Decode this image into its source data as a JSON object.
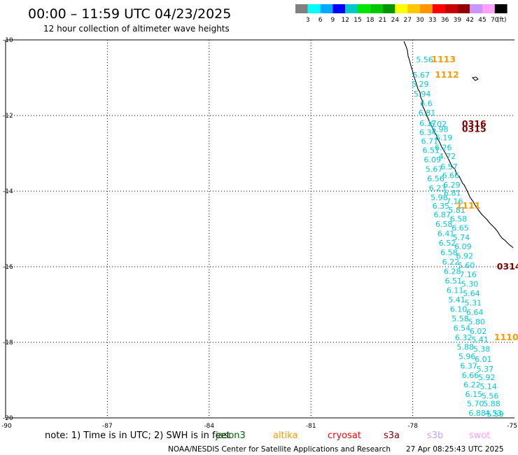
{
  "chart_data": {
    "type": "scatter",
    "title": "00:00 – 11:59 UTC 04/23/2025",
    "subtitle": "12 hour collection of altimeter wave heights",
    "xlim": [
      -90,
      -75
    ],
    "ylim": [
      -20,
      -10
    ],
    "xticks": [
      "-90",
      "-87",
      "-84",
      "-81",
      "-78",
      "-75"
    ],
    "yticks": [
      "-10",
      "-12",
      "-14",
      "-16",
      "-18",
      "-20"
    ],
    "grid": true,
    "colorbar": {
      "unit": "(ft)",
      "labels": [
        "3",
        "6",
        "9",
        "12",
        "15",
        "18",
        "21",
        "24",
        "27",
        "30",
        "33",
        "36",
        "39",
        "42",
        "45",
        "70"
      ],
      "colors": [
        "#808080",
        "#00ffff",
        "#00aaff",
        "#0000ff",
        "#00c8c8",
        "#00e600",
        "#00c800",
        "#009600",
        "#ffff00",
        "#ffc800",
        "#ff9600",
        "#ff0000",
        "#c80000",
        "#960000",
        "#c896ff",
        "#ffa0ff",
        "#000000"
      ]
    },
    "swh_points": [
      {
        "lon": -77.65,
        "lat": -10.52,
        "value": "5.56"
      },
      {
        "lon": -77.75,
        "lat": -10.93,
        "value": "5.67"
      },
      {
        "lon": -77.78,
        "lat": -11.17,
        "value": "5.29"
      },
      {
        "lon": -77.72,
        "lat": -11.43,
        "value": "5.94"
      },
      {
        "lon": -77.6,
        "lat": -11.68,
        "value": "6.6"
      },
      {
        "lon": -77.58,
        "lat": -11.93,
        "value": "6.81"
      },
      {
        "lon": -77.55,
        "lat": -12.2,
        "value": "6.17"
      },
      {
        "lon": -77.25,
        "lat": -12.22,
        "value": "6.02"
      },
      {
        "lon": -77.2,
        "lat": -12.36,
        "value": "5.98"
      },
      {
        "lon": -77.55,
        "lat": -12.44,
        "value": "6.34"
      },
      {
        "lon": -77.08,
        "lat": -12.58,
        "value": "6.19"
      },
      {
        "lon": -77.5,
        "lat": -12.68,
        "value": "6.71"
      },
      {
        "lon": -77.1,
        "lat": -12.84,
        "value": "6.26"
      },
      {
        "lon": -77.46,
        "lat": -12.92,
        "value": "6.51"
      },
      {
        "lon": -76.98,
        "lat": -13.07,
        "value": "4.72"
      },
      {
        "lon": -77.42,
        "lat": -13.17,
        "value": "6.09"
      },
      {
        "lon": -76.93,
        "lat": -13.35,
        "value": "6.57"
      },
      {
        "lon": -77.37,
        "lat": -13.42,
        "value": "5.67"
      },
      {
        "lon": -76.88,
        "lat": -13.58,
        "value": "6.66"
      },
      {
        "lon": -77.32,
        "lat": -13.67,
        "value": "6.56"
      },
      {
        "lon": -76.85,
        "lat": -13.83,
        "value": "6.29"
      },
      {
        "lon": -77.27,
        "lat": -13.92,
        "value": "6.23"
      },
      {
        "lon": -76.83,
        "lat": -14.05,
        "value": "6.81"
      },
      {
        "lon": -77.22,
        "lat": -14.17,
        "value": "5.98"
      },
      {
        "lon": -76.77,
        "lat": -14.27,
        "value": "7.16"
      },
      {
        "lon": -77.17,
        "lat": -14.39,
        "value": "6.35"
      },
      {
        "lon": -76.7,
        "lat": -14.5,
        "value": "5.81"
      },
      {
        "lon": -77.13,
        "lat": -14.62,
        "value": "6.87"
      },
      {
        "lon": -76.65,
        "lat": -14.73,
        "value": "6.58"
      },
      {
        "lon": -77.08,
        "lat": -14.87,
        "value": "6.58"
      },
      {
        "lon": -76.6,
        "lat": -14.97,
        "value": "6.65"
      },
      {
        "lon": -77.02,
        "lat": -15.12,
        "value": "6.41"
      },
      {
        "lon": -76.57,
        "lat": -15.22,
        "value": "5.74"
      },
      {
        "lon": -76.98,
        "lat": -15.37,
        "value": "6.52"
      },
      {
        "lon": -76.52,
        "lat": -15.46,
        "value": "6.09"
      },
      {
        "lon": -76.93,
        "lat": -15.62,
        "value": "6.58"
      },
      {
        "lon": -76.47,
        "lat": -15.71,
        "value": "6.92"
      },
      {
        "lon": -76.88,
        "lat": -15.87,
        "value": "6.22"
      },
      {
        "lon": -76.42,
        "lat": -15.96,
        "value": "5.60"
      },
      {
        "lon": -76.83,
        "lat": -16.12,
        "value": "6.28"
      },
      {
        "lon": -76.37,
        "lat": -16.2,
        "value": "7.16"
      },
      {
        "lon": -76.8,
        "lat": -16.37,
        "value": "6.51"
      },
      {
        "lon": -76.32,
        "lat": -16.45,
        "value": "5.30"
      },
      {
        "lon": -76.75,
        "lat": -16.62,
        "value": "6.11"
      },
      {
        "lon": -76.27,
        "lat": -16.7,
        "value": "5.64"
      },
      {
        "lon": -76.7,
        "lat": -16.87,
        "value": "5.41"
      },
      {
        "lon": -76.22,
        "lat": -16.95,
        "value": "5.31"
      },
      {
        "lon": -76.65,
        "lat": -17.12,
        "value": "6.10"
      },
      {
        "lon": -76.17,
        "lat": -17.2,
        "value": "6.64"
      },
      {
        "lon": -76.6,
        "lat": -17.37,
        "value": "5.58"
      },
      {
        "lon": -76.12,
        "lat": -17.45,
        "value": "5.80"
      },
      {
        "lon": -76.55,
        "lat": -17.62,
        "value": "6.54"
      },
      {
        "lon": -76.07,
        "lat": -17.7,
        "value": "6.02"
      },
      {
        "lon": -76.5,
        "lat": -17.87,
        "value": "6.32"
      },
      {
        "lon": -76.02,
        "lat": -17.93,
        "value": "5.41"
      },
      {
        "lon": -76.45,
        "lat": -18.12,
        "value": "5.88"
      },
      {
        "lon": -75.97,
        "lat": -18.18,
        "value": "5.38"
      },
      {
        "lon": -76.4,
        "lat": -18.37,
        "value": "5.96"
      },
      {
        "lon": -75.92,
        "lat": -18.44,
        "value": "6.01"
      },
      {
        "lon": -76.35,
        "lat": -18.62,
        "value": "6.37"
      },
      {
        "lon": -75.87,
        "lat": -18.7,
        "value": "5.37"
      },
      {
        "lon": -76.3,
        "lat": -18.87,
        "value": "6.66"
      },
      {
        "lon": -75.82,
        "lat": -18.93,
        "value": "5.92"
      },
      {
        "lon": -76.25,
        "lat": -19.12,
        "value": "6.22"
      },
      {
        "lon": -75.77,
        "lat": -19.17,
        "value": "5.14"
      },
      {
        "lon": -76.2,
        "lat": -19.37,
        "value": "6.15"
      },
      {
        "lon": -75.72,
        "lat": -19.42,
        "value": "5.56"
      },
      {
        "lon": -75.67,
        "lat": -19.62,
        "value": "5.88"
      },
      {
        "lon": -76.15,
        "lat": -19.62,
        "value": "5.70"
      },
      {
        "lon": -75.62,
        "lat": -19.87,
        "value": "4.53"
      },
      {
        "lon": -76.1,
        "lat": -19.87,
        "value": "6.88"
      },
      {
        "lon": -75.57,
        "lat": -19.9,
        "value": "5.59"
      }
    ],
    "pass_labels": [
      {
        "lon": -77.45,
        "lat": -10.52,
        "text": "1113",
        "color": "#ff9900"
      },
      {
        "lon": -77.35,
        "lat": -10.93,
        "text": "1112",
        "color": "#ff9900"
      },
      {
        "lon": -76.55,
        "lat": -12.22,
        "text": "0316",
        "color": "#800000"
      },
      {
        "lon": -76.55,
        "lat": -12.36,
        "text": "0315",
        "color": "#800000"
      },
      {
        "lon": -76.72,
        "lat": -14.39,
        "text": "1111",
        "color": "#ff9900"
      },
      {
        "lon": -75.52,
        "lat": -16.0,
        "text": "0314",
        "color": "#800000"
      },
      {
        "lon": -75.6,
        "lat": -17.87,
        "text": "1110",
        "color": "#ff9900"
      }
    ]
  },
  "note_text": "note: 1) Time is in UTC; 2) SWH is in feet",
  "satellites": [
    {
      "name": "jason3",
      "color": "#006400"
    },
    {
      "name": "altika",
      "color": "#ff9900"
    },
    {
      "name": "cryosat",
      "color": "#ff0000"
    },
    {
      "name": "s3a",
      "color": "#800000"
    },
    {
      "name": "s3b",
      "color": "#c8a0ff"
    },
    {
      "name": "swot",
      "color": "#ff99ff"
    }
  ],
  "footer": {
    "credit": "NOAA/NESDIS Center for Satellite Applications and Research",
    "timestamp": "27 Apr 08:25:43 UTC 2025"
  }
}
